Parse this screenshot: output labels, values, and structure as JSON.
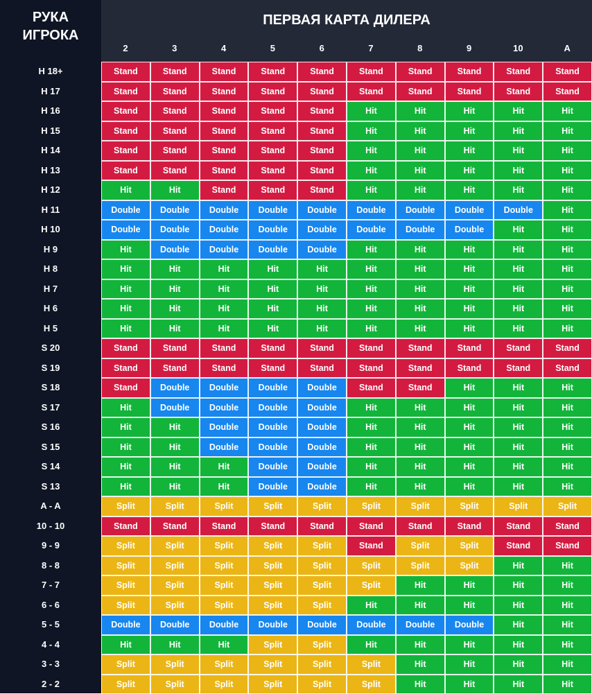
{
  "header": {
    "player_hand_title": [
      "РУКА",
      "ИГРОКА"
    ],
    "dealer_title": "ПЕРВАЯ КАРТА ДИЛЕРА",
    "dealer_cards": [
      "2",
      "3",
      "4",
      "5",
      "6",
      "7",
      "8",
      "9",
      "10",
      "A"
    ]
  },
  "actions": {
    "S": "Stand",
    "H": "Hit",
    "D": "Double",
    "P": "Split"
  },
  "colors": {
    "S": "#d31b42",
    "H": "#12b53a",
    "D": "#1786ef",
    "P": "#ebb515",
    "sidebar": "#0f1525",
    "header": "#232937"
  },
  "rows": [
    {
      "hand": "H 18+",
      "actions": [
        "S",
        "S",
        "S",
        "S",
        "S",
        "S",
        "S",
        "S",
        "S",
        "S"
      ]
    },
    {
      "hand": "H 17",
      "actions": [
        "S",
        "S",
        "S",
        "S",
        "S",
        "S",
        "S",
        "S",
        "S",
        "S"
      ]
    },
    {
      "hand": "H 16",
      "actions": [
        "S",
        "S",
        "S",
        "S",
        "S",
        "H",
        "H",
        "H",
        "H",
        "H"
      ]
    },
    {
      "hand": "H 15",
      "actions": [
        "S",
        "S",
        "S",
        "S",
        "S",
        "H",
        "H",
        "H",
        "H",
        "H"
      ]
    },
    {
      "hand": "H 14",
      "actions": [
        "S",
        "S",
        "S",
        "S",
        "S",
        "H",
        "H",
        "H",
        "H",
        "H"
      ]
    },
    {
      "hand": "H 13",
      "actions": [
        "S",
        "S",
        "S",
        "S",
        "S",
        "H",
        "H",
        "H",
        "H",
        "H"
      ]
    },
    {
      "hand": "H 12",
      "actions": [
        "H",
        "H",
        "S",
        "S",
        "S",
        "H",
        "H",
        "H",
        "H",
        "H"
      ]
    },
    {
      "hand": "H 11",
      "actions": [
        "D",
        "D",
        "D",
        "D",
        "D",
        "D",
        "D",
        "D",
        "D",
        "H"
      ]
    },
    {
      "hand": "H 10",
      "actions": [
        "D",
        "D",
        "D",
        "D",
        "D",
        "D",
        "D",
        "D",
        "H",
        "H"
      ]
    },
    {
      "hand": "H 9",
      "actions": [
        "H",
        "D",
        "D",
        "D",
        "D",
        "H",
        "H",
        "H",
        "H",
        "H"
      ]
    },
    {
      "hand": "H 8",
      "actions": [
        "H",
        "H",
        "H",
        "H",
        "H",
        "H",
        "H",
        "H",
        "H",
        "H"
      ]
    },
    {
      "hand": "H 7",
      "actions": [
        "H",
        "H",
        "H",
        "H",
        "H",
        "H",
        "H",
        "H",
        "H",
        "H"
      ]
    },
    {
      "hand": "H 6",
      "actions": [
        "H",
        "H",
        "H",
        "H",
        "H",
        "H",
        "H",
        "H",
        "H",
        "H"
      ]
    },
    {
      "hand": "H 5",
      "actions": [
        "H",
        "H",
        "H",
        "H",
        "H",
        "H",
        "H",
        "H",
        "H",
        "H"
      ]
    },
    {
      "hand": "S 20",
      "actions": [
        "S",
        "S",
        "S",
        "S",
        "S",
        "S",
        "S",
        "S",
        "S",
        "S"
      ]
    },
    {
      "hand": "S 19",
      "actions": [
        "S",
        "S",
        "S",
        "S",
        "S",
        "S",
        "S",
        "S",
        "S",
        "S"
      ]
    },
    {
      "hand": "S 18",
      "actions": [
        "S",
        "D",
        "D",
        "D",
        "D",
        "S",
        "S",
        "H",
        "H",
        "H"
      ]
    },
    {
      "hand": "S 17",
      "actions": [
        "H",
        "D",
        "D",
        "D",
        "D",
        "H",
        "H",
        "H",
        "H",
        "H"
      ]
    },
    {
      "hand": "S 16",
      "actions": [
        "H",
        "H",
        "D",
        "D",
        "D",
        "H",
        "H",
        "H",
        "H",
        "H"
      ]
    },
    {
      "hand": "S 15",
      "actions": [
        "H",
        "H",
        "D",
        "D",
        "D",
        "H",
        "H",
        "H",
        "H",
        "H"
      ]
    },
    {
      "hand": "S 14",
      "actions": [
        "H",
        "H",
        "H",
        "D",
        "D",
        "H",
        "H",
        "H",
        "H",
        "H"
      ]
    },
    {
      "hand": "S 13",
      "actions": [
        "H",
        "H",
        "H",
        "D",
        "D",
        "H",
        "H",
        "H",
        "H",
        "H"
      ]
    },
    {
      "hand": "A - A",
      "actions": [
        "P",
        "P",
        "P",
        "P",
        "P",
        "P",
        "P",
        "P",
        "P",
        "P"
      ]
    },
    {
      "hand": "10 - 10",
      "actions": [
        "S",
        "S",
        "S",
        "S",
        "S",
        "S",
        "S",
        "S",
        "S",
        "S"
      ]
    },
    {
      "hand": "9 - 9",
      "actions": [
        "P",
        "P",
        "P",
        "P",
        "P",
        "S",
        "P",
        "P",
        "S",
        "S"
      ]
    },
    {
      "hand": "8 - 8",
      "actions": [
        "P",
        "P",
        "P",
        "P",
        "P",
        "P",
        "P",
        "P",
        "H",
        "H"
      ]
    },
    {
      "hand": "7 - 7",
      "actions": [
        "P",
        "P",
        "P",
        "P",
        "P",
        "P",
        "H",
        "H",
        "H",
        "H"
      ]
    },
    {
      "hand": "6 - 6",
      "actions": [
        "P",
        "P",
        "P",
        "P",
        "P",
        "H",
        "H",
        "H",
        "H",
        "H"
      ]
    },
    {
      "hand": "5 - 5",
      "actions": [
        "D",
        "D",
        "D",
        "D",
        "D",
        "D",
        "D",
        "D",
        "H",
        "H"
      ]
    },
    {
      "hand": "4 - 4",
      "actions": [
        "H",
        "H",
        "H",
        "P",
        "P",
        "H",
        "H",
        "H",
        "H",
        "H"
      ]
    },
    {
      "hand": "3 - 3",
      "actions": [
        "P",
        "P",
        "P",
        "P",
        "P",
        "P",
        "H",
        "H",
        "H",
        "H"
      ]
    },
    {
      "hand": "2 - 2",
      "actions": [
        "P",
        "P",
        "P",
        "P",
        "P",
        "P",
        "H",
        "H",
        "H",
        "H"
      ]
    }
  ]
}
